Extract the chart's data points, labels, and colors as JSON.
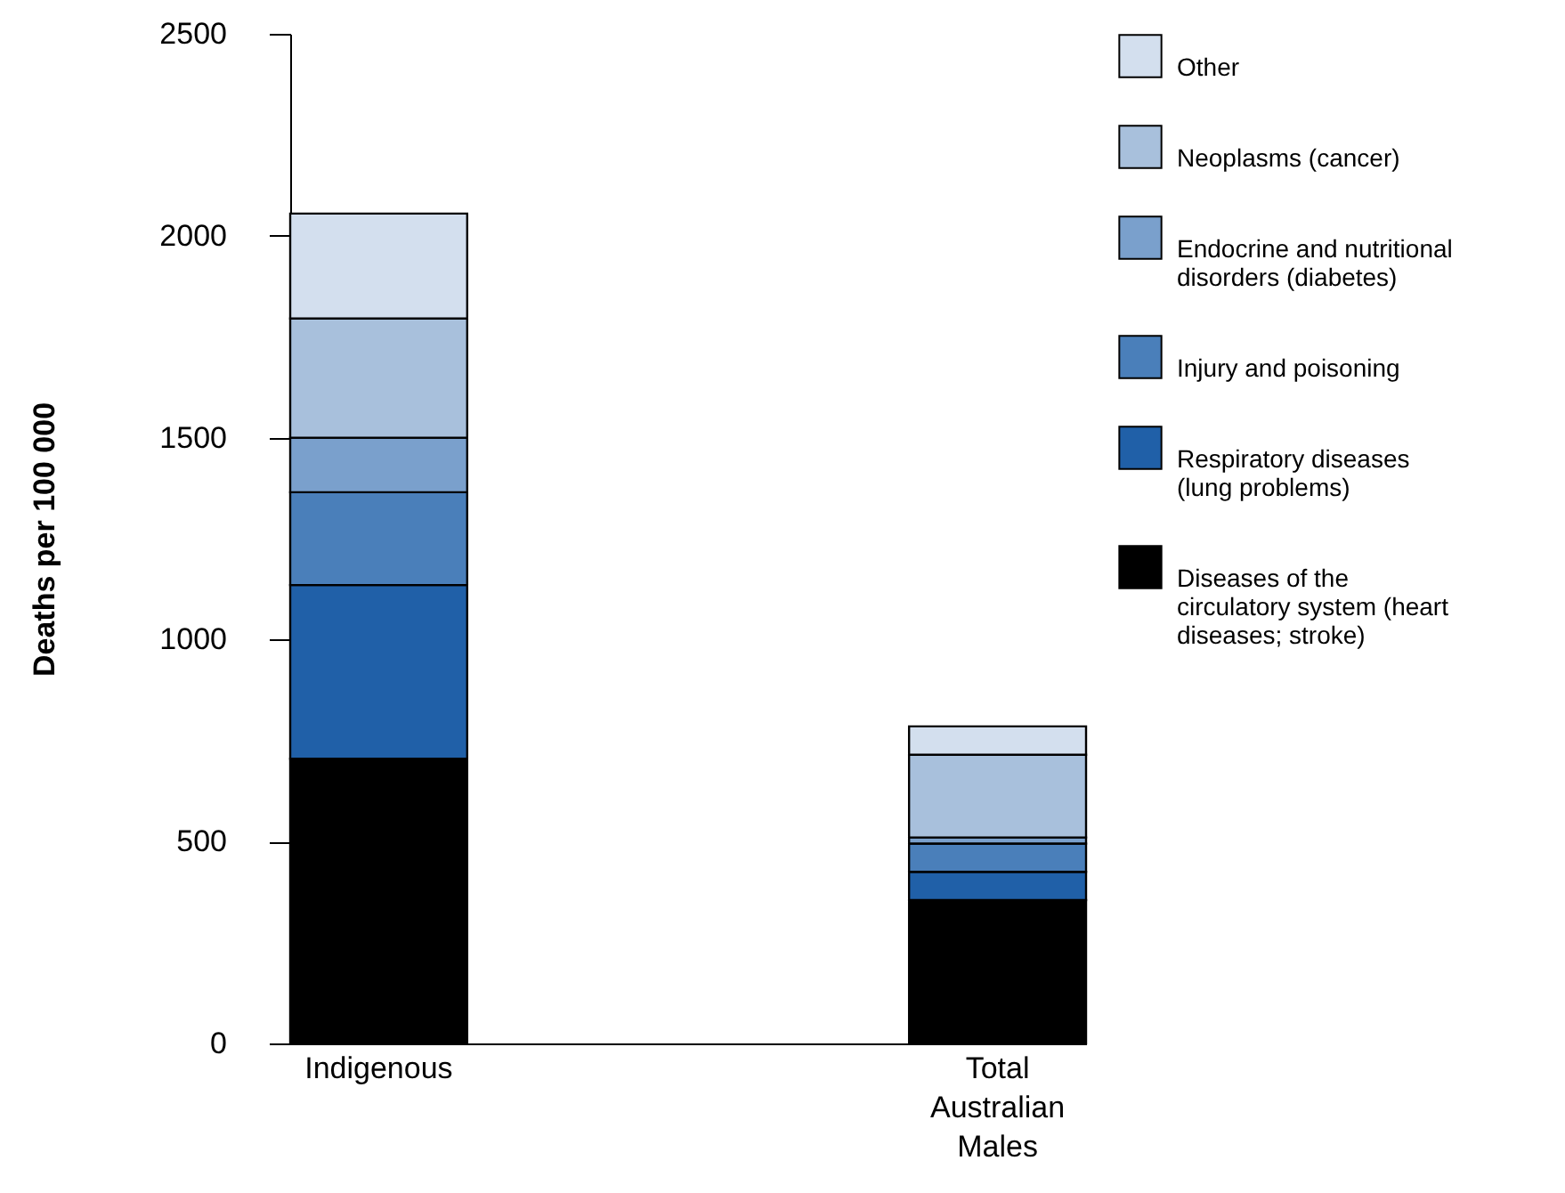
{
  "chart_data": {
    "type": "bar",
    "stacked": true,
    "ylabel": "Deaths per 100 000",
    "categories": [
      "Indigenous",
      "Total Australian Males"
    ],
    "ylim": [
      0,
      2500
    ],
    "yticks": [
      0,
      500,
      1000,
      1500,
      2000,
      2500
    ],
    "grid": false,
    "legend": "right",
    "series": [
      {
        "name": "Diseases of the circulatory system (heart diseases; stroke)",
        "color": "#000000",
        "values": [
          705,
          355
        ]
      },
      {
        "name": "Respiratory diseases (lung problems)",
        "color": "#2060a8",
        "values": [
          430,
          70
        ]
      },
      {
        "name": "Injury and poisoning",
        "color": "#4a7fba",
        "values": [
          230,
          70
        ]
      },
      {
        "name": "Endocrine and nutritional disorders (diabetes)",
        "color": "#7aa0cc",
        "values": [
          135,
          15
        ]
      },
      {
        "name": "Neoplasms (cancer)",
        "color": "#a8c0dc",
        "values": [
          295,
          205
        ]
      },
      {
        "name": "Other",
        "color": "#d3dfee",
        "values": [
          260,
          70
        ]
      }
    ]
  }
}
